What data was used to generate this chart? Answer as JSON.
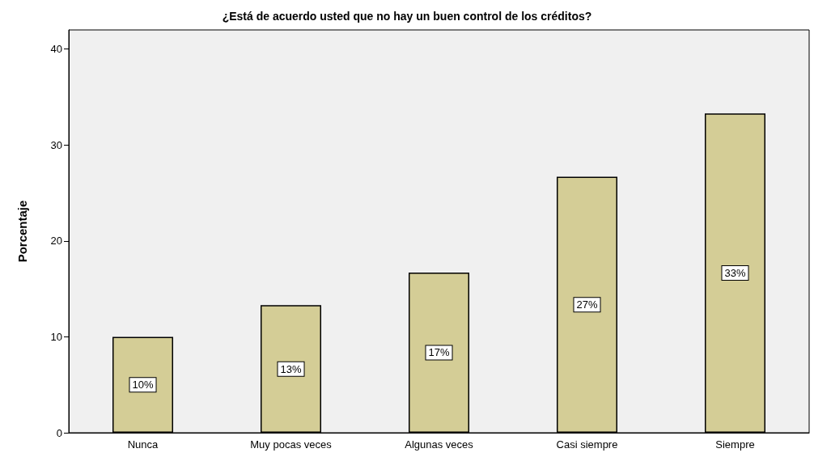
{
  "chart_data": {
    "type": "bar",
    "title": "¿Está de acuerdo usted que no hay un buen control de los créditos?",
    "ylabel": "Porcentaje",
    "categories": [
      "Nunca",
      "Muy pocas veces",
      "Algunas veces",
      "Casi siempre",
      "Siempre"
    ],
    "values": [
      10,
      13.3,
      16.7,
      26.7,
      33.3
    ],
    "value_labels": [
      "10%",
      "13%",
      "17%",
      "27%",
      "33%"
    ],
    "color": "#d4cd96",
    "ylim": [
      0,
      42
    ],
    "yticks": [
      0,
      10,
      20,
      30,
      40
    ],
    "grid": false
  }
}
